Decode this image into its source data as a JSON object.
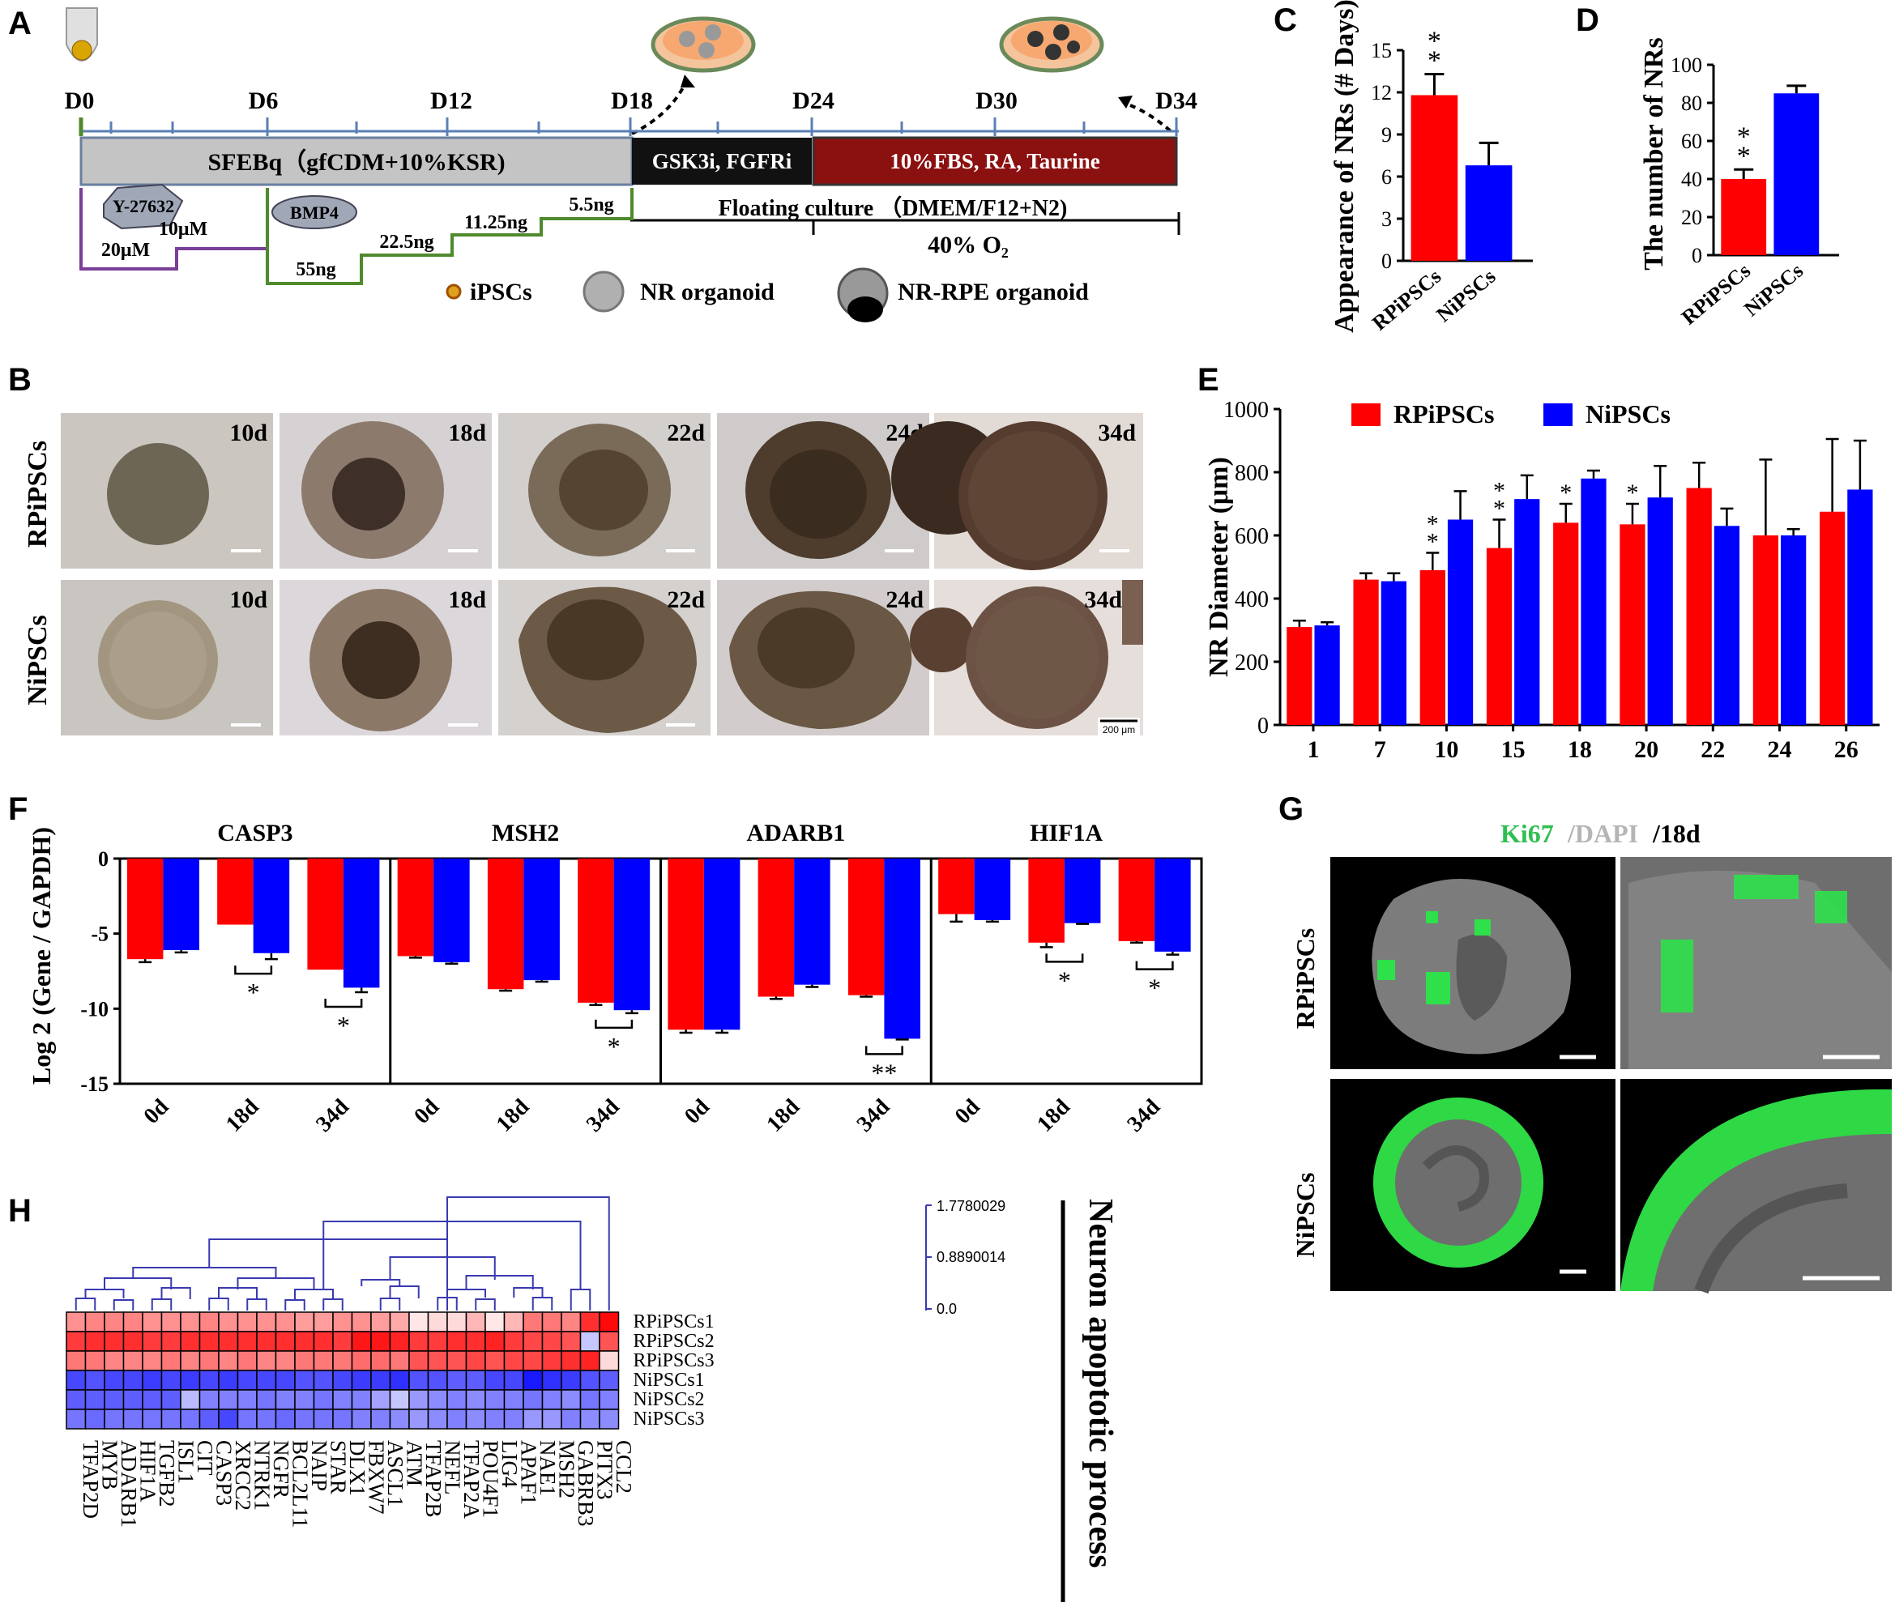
{
  "panel_letters": {
    "a": "A",
    "b": "B",
    "c": "C",
    "d": "D",
    "e": "E",
    "f": "F",
    "g": "G",
    "h": "H"
  },
  "panel_a": {
    "days": [
      "D0",
      "D6",
      "D12",
      "D18",
      "D24",
      "D30",
      "D34"
    ],
    "sfebq_label": "SFEBq（gfCDM+10%KSR)",
    "gsk_label": "GSK3i, FGFRi",
    "fbs_label": "10%FBS, RA, Taurine",
    "floating_label": "Floating culture （DMEM/F12+N2)",
    "oxygen_label": "40% O₂",
    "y27632": "Y-27632",
    "y_high": "20μM",
    "y_low": "10μM",
    "bmp4": "BMP4",
    "bmp_steps": [
      "55ng",
      "22.5ng",
      "11.25ng",
      "5.5ng"
    ],
    "legend": [
      "iPSCs",
      "NR organoid",
      "NR-RPE organoid"
    ],
    "colors": {
      "sfebq": "#c4c4c4",
      "gsk": "#111111",
      "fbs": "#8b1010",
      "y_line": "#7a3f98",
      "bmp_line": "#4f8a2c"
    }
  },
  "panel_b": {
    "rows": [
      "RPiPSCs",
      "NiPSCs"
    ],
    "days": [
      "10d",
      "18d",
      "22d",
      "24d",
      "34d"
    ],
    "scale": "200 μm"
  },
  "panel_g": {
    "title_ki67": "Ki67",
    "title_dapi": "/DAPI",
    "title_day": " /18d",
    "rows": [
      "RPiPSCs",
      "NiPSCs"
    ]
  },
  "panel_h": {
    "side_label": "Neuron apoptotic process",
    "scale_values": [
      "1.7780029",
      "0.8890014",
      "0.0"
    ],
    "rows": [
      "RPiPSCs1",
      "RPiPSCs2",
      "RPiPSCs3",
      "NiPSCs1",
      "NiPSCs2",
      "NiPSCs3"
    ],
    "genes": [
      "TFAP2D",
      "MYB",
      "ADARB1",
      "HIF1A",
      "TGFB2",
      "ISL1",
      "CIT",
      "CASP3",
      "XRCC2",
      "NTRK1",
      "NGFR",
      "BCL2L11",
      "NAIP",
      "STAR",
      "DLX1",
      "FBXW7",
      "ASCL1",
      "ATM",
      "TFAP2B",
      "NEFL",
      "TFAP2A",
      "POU4F1",
      "LIG4",
      "APAF1",
      "NAE1",
      "MSH2",
      "GABRB3",
      "PITX3",
      "CCL2"
    ],
    "heat": [
      [
        0.45,
        0.5,
        0.5,
        0.5,
        0.45,
        0.45,
        0.45,
        0.5,
        0.45,
        0.45,
        0.45,
        0.45,
        0.4,
        0.4,
        0.45,
        0.45,
        0.4,
        0.35,
        0.1,
        0.15,
        0.15,
        0.3,
        0.1,
        0.3,
        0.55,
        0.55,
        0.5,
        0.85,
        1.0
      ],
      [
        0.8,
        0.85,
        0.85,
        0.85,
        0.8,
        0.8,
        0.85,
        0.85,
        0.85,
        0.85,
        0.85,
        0.85,
        0.85,
        0.85,
        0.8,
        0.95,
        0.95,
        0.9,
        0.8,
        0.8,
        0.85,
        0.85,
        0.9,
        0.8,
        0.75,
        0.75,
        0.7,
        -0.25,
        0.7
      ],
      [
        0.55,
        0.55,
        0.5,
        0.5,
        0.5,
        0.55,
        0.5,
        0.55,
        0.5,
        0.55,
        0.5,
        0.5,
        0.55,
        0.55,
        0.55,
        0.6,
        0.6,
        0.55,
        0.7,
        0.7,
        0.7,
        0.75,
        0.7,
        0.75,
        0.75,
        0.8,
        0.85,
        0.9,
        0.15
      ],
      [
        -0.8,
        -0.75,
        -0.8,
        -0.8,
        -0.85,
        -0.8,
        -0.85,
        -0.8,
        -0.85,
        -0.8,
        -0.8,
        -0.8,
        -0.75,
        -0.75,
        -0.8,
        -0.85,
        -0.85,
        -0.9,
        -0.75,
        -0.75,
        -0.7,
        -0.7,
        -0.8,
        -0.8,
        -1.0,
        -0.9,
        -0.85,
        -0.75,
        -0.7
      ],
      [
        -0.7,
        -0.7,
        -0.7,
        -0.7,
        -0.7,
        -0.7,
        -0.3,
        -0.55,
        -0.55,
        -0.55,
        -0.6,
        -0.55,
        -0.55,
        -0.6,
        -0.55,
        -0.55,
        -0.4,
        -0.25,
        -0.45,
        -0.5,
        -0.55,
        -0.5,
        -0.55,
        -0.55,
        -0.6,
        -0.55,
        -0.5,
        -0.6,
        -0.55
      ],
      [
        -0.6,
        -0.65,
        -0.6,
        -0.6,
        -0.6,
        -0.6,
        -0.6,
        -0.7,
        -0.8,
        -0.6,
        -0.6,
        -0.65,
        -0.6,
        -0.6,
        -0.6,
        -0.55,
        -0.55,
        -0.5,
        -0.45,
        -0.5,
        -0.55,
        -0.5,
        -0.55,
        -0.55,
        -0.45,
        -0.45,
        -0.55,
        -0.5,
        -0.5
      ]
    ]
  },
  "chart_data": [
    {
      "id": "C",
      "type": "bar",
      "ylabel": "Appearance of NRs (# Days)",
      "categories": [
        "RPiPSCs",
        "NiPSCs"
      ],
      "values": [
        11.8,
        6.8
      ],
      "errors": [
        1.5,
        1.6
      ],
      "colors": [
        "#ff0000",
        "#0000ff"
      ],
      "ylim": [
        0,
        15
      ],
      "yticks": [
        0,
        3,
        6,
        9,
        12,
        15
      ],
      "annotations": [
        {
          "index": 0,
          "text": "**"
        }
      ]
    },
    {
      "id": "D",
      "type": "bar",
      "ylabel": "The number of NRs",
      "categories": [
        "RPiPSCs",
        "NiPSCs"
      ],
      "values": [
        40,
        85
      ],
      "errors": [
        5,
        4
      ],
      "colors": [
        "#ff0000",
        "#0000ff"
      ],
      "ylim": [
        0,
        100
      ],
      "yticks": [
        0,
        20,
        40,
        60,
        80,
        100
      ],
      "annotations": [
        {
          "index": 0,
          "text": "**"
        }
      ]
    },
    {
      "id": "E",
      "type": "bar",
      "ylabel": "NR Diameter (μm)",
      "categories": [
        "1",
        "7",
        "10",
        "15",
        "18",
        "20",
        "22",
        "24",
        "26"
      ],
      "series": [
        {
          "name": "RPiPSCs",
          "color": "#ff0000",
          "values": [
            310,
            460,
            490,
            560,
            640,
            635,
            750,
            600,
            675
          ],
          "errors": [
            20,
            20,
            55,
            90,
            60,
            65,
            80,
            240,
            230
          ]
        },
        {
          "name": "NiPSCs",
          "color": "#0000ff",
          "values": [
            315,
            455,
            650,
            715,
            780,
            720,
            630,
            600,
            745
          ],
          "errors": [
            10,
            25,
            90,
            75,
            25,
            100,
            55,
            20,
            155
          ]
        }
      ],
      "ylim": [
        0,
        1000
      ],
      "yticks": [
        0,
        200,
        400,
        600,
        800,
        1000
      ],
      "annotations": [
        {
          "index": 2,
          "text": "**"
        },
        {
          "index": 3,
          "text": "**"
        },
        {
          "index": 4,
          "text": "*"
        },
        {
          "index": 5,
          "text": "*"
        }
      ],
      "legend": "top"
    },
    {
      "id": "F",
      "type": "bar",
      "ylabel": "Log 2 (Gene / GAPDH)",
      "ylim": [
        -15,
        0
      ],
      "yticks": [
        0,
        -5,
        -10,
        -15
      ],
      "groups": [
        {
          "gene": "CASP3",
          "categories": [
            "0d",
            "18d",
            "34d"
          ],
          "red": [
            -6.7,
            -4.4,
            -7.4
          ],
          "blue": [
            -6.1,
            -6.3,
            -8.6
          ],
          "red_err": [
            0.2,
            0,
            0
          ],
          "blue_err": [
            0.15,
            0.4,
            0.3
          ],
          "sig": [
            {
              "index": 1,
              "text": "*"
            },
            {
              "index": 2,
              "text": "*"
            }
          ]
        },
        {
          "gene": "MSH2",
          "categories": [
            "0d",
            "18d",
            "34d"
          ],
          "red": [
            -6.5,
            -8.7,
            -9.6
          ],
          "blue": [
            -6.9,
            -8.1,
            -10.1
          ],
          "red_err": [
            0.1,
            0.1,
            0.15
          ],
          "blue_err": [
            0.1,
            0.1,
            0.2
          ],
          "sig": [
            {
              "index": 2,
              "text": "*"
            }
          ]
        },
        {
          "gene": "ADARB1",
          "categories": [
            "0d",
            "18d",
            "34d"
          ],
          "red": [
            -11.4,
            -9.2,
            -9.1
          ],
          "blue": [
            -11.4,
            -8.4,
            -12.0
          ],
          "red_err": [
            0.2,
            0.15,
            0.1
          ],
          "blue_err": [
            0.2,
            0.15,
            0.05
          ],
          "sig": [
            {
              "index": 2,
              "text": "**"
            }
          ]
        },
        {
          "gene": "HIF1A",
          "categories": [
            "0d",
            "18d",
            "34d"
          ],
          "red": [
            -3.7,
            -5.6,
            -5.5
          ],
          "blue": [
            -4.1,
            -4.3,
            -6.2
          ],
          "red_err": [
            0.5,
            0.3,
            0.1
          ],
          "blue_err": [
            0.1,
            0.05,
            0.2
          ],
          "sig": [
            {
              "index": 1,
              "text": "*"
            },
            {
              "index": 2,
              "text": "*"
            }
          ]
        }
      ]
    }
  ]
}
